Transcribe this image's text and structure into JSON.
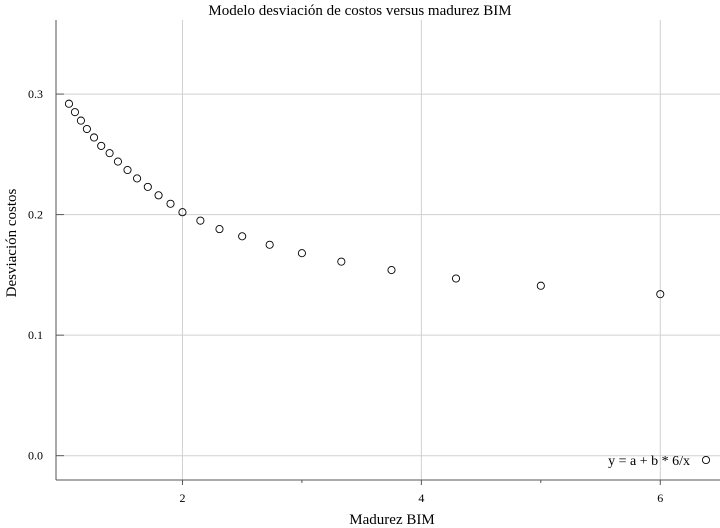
{
  "chart_data": {
    "type": "scatter",
    "title": "Modelo desviación de costos versus  madurez BIM",
    "xlabel": "Madurez BIM",
    "ylabel": "Desviación costos",
    "xlim": [
      1,
      6.5
    ],
    "ylim": [
      -0.02,
      0.35
    ],
    "x_ticks": [
      2,
      4,
      6
    ],
    "x_tick_labels": [
      "2",
      "4",
      "6"
    ],
    "x_minor_ticks": [
      3,
      5
    ],
    "y_ticks": [
      0.0,
      0.1,
      0.2,
      0.3
    ],
    "y_tick_labels": [
      "0.0",
      "0.1",
      "0.2",
      "0.3"
    ],
    "grid": true,
    "legend": {
      "position": "bottom-right",
      "label": "y = a + b * 6/x"
    },
    "series": [
      {
        "name": "y = a + b * 6/x",
        "marker": "open-circle",
        "color": "#000000",
        "x": [
          1.05,
          1.1,
          1.15,
          1.2,
          1.26,
          1.32,
          1.39,
          1.46,
          1.54,
          1.62,
          1.71,
          1.8,
          1.9,
          2.0,
          2.15,
          2.31,
          2.5,
          2.73,
          3.0,
          3.33,
          3.75,
          4.29,
          5.0,
          6.0
        ],
        "y": [
          0.292,
          0.285,
          0.278,
          0.271,
          0.264,
          0.257,
          0.251,
          0.244,
          0.237,
          0.23,
          0.223,
          0.216,
          0.209,
          0.202,
          0.195,
          0.188,
          0.182,
          0.175,
          0.168,
          0.161,
          0.154,
          0.147,
          0.141,
          0.134
        ]
      }
    ]
  }
}
